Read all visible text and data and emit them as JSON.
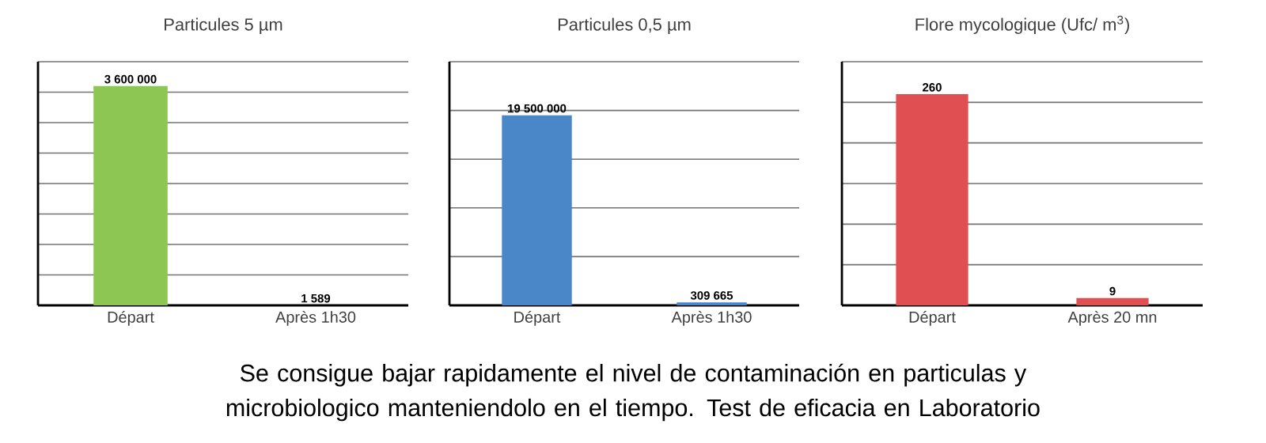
{
  "chart_data": [
    {
      "type": "bar",
      "title": "Particules 5 µm",
      "categories": [
        "Départ",
        "Après 1h30"
      ],
      "values": [
        3600000,
        1589
      ],
      "value_labels": [
        "3 600 000",
        "1 589"
      ],
      "color": "#8dc653",
      "ylim": [
        0,
        4000000
      ],
      "yticks": [
        {
          "value": 0,
          "label": null
        },
        {
          "value": 500000,
          "label": null
        },
        {
          "value": 1000000,
          "label": null
        },
        {
          "value": 1500000,
          "label": null
        },
        {
          "value": 2000000,
          "label": null
        },
        {
          "value": 2500000,
          "label": null
        },
        {
          "value": 3000000,
          "label": null
        },
        {
          "value": 3500000,
          "label": null
        },
        {
          "value": 4000000,
          "label": null
        }
      ],
      "grid": "y",
      "tick_labels": "x",
      "annotations": [
        "Se consigue bajar rapidamente el nivel de contaminación en particulas y microbiologico manteniendolo en el tiempo. Test de eficacia en Laboratorio"
      ]
    },
    {
      "type": "bar",
      "title": "Particules 0,5 µm",
      "categories": [
        "Départ",
        "Après 1h30"
      ],
      "values": [
        19500000,
        309665
      ],
      "value_labels": [
        "19 500 000",
        "309 665"
      ],
      "color": "#4a87c9",
      "ylim": [
        0,
        25000000
      ],
      "yticks": [
        {
          "value": 0,
          "label": null
        },
        {
          "value": 5000000,
          "label": null
        },
        {
          "value": 10000000,
          "label": null
        },
        {
          "value": 15000000,
          "label": null
        },
        {
          "value": 20000000,
          "label": null
        },
        {
          "value": 25000000,
          "label": null
        }
      ],
      "grid": "y",
      "tick_labels": "x"
    },
    {
      "type": "bar",
      "title": "Flore mycologique (Ufc/ m$^{3}$)",
      "categories": [
        "Départ",
        "Après 20 mn"
      ],
      "values": [
        260,
        9
      ],
      "value_labels": [
        "260",
        "9"
      ],
      "color": "#e05052",
      "ylim": [
        0,
        300
      ],
      "yticks": [
        {
          "value": 0,
          "label": null
        },
        {
          "value": 50,
          "label": null
        },
        {
          "value": 100,
          "label": null
        },
        {
          "value": 150,
          "label": null
        },
        {
          "value": 200,
          "label": null
        },
        {
          "value": 250,
          "label": null
        },
        {
          "value": 300,
          "label": null
        }
      ],
      "grid": "y",
      "tick_labels": "x"
    }
  ]
}
